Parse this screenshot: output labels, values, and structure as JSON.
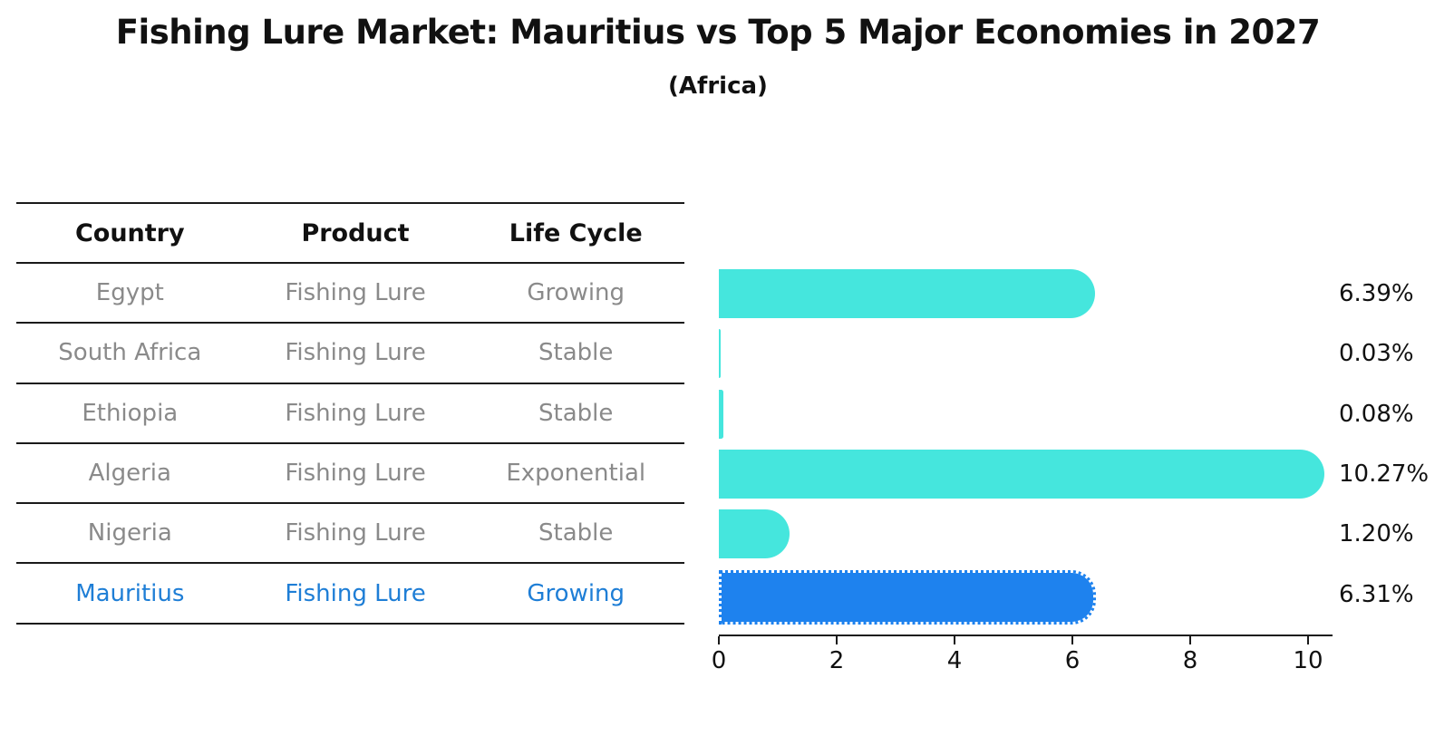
{
  "title": "Fishing Lure Market: Mauritius vs Top 5 Major Economies in 2027",
  "subtitle": "(Africa)",
  "table": {
    "headers": [
      "Country",
      "Product",
      "Life Cycle"
    ],
    "rows": [
      {
        "country": "Egypt",
        "product": "Fishing Lure",
        "life_cycle": "Growing",
        "highlight": false
      },
      {
        "country": "South Africa",
        "product": "Fishing Lure",
        "life_cycle": "Stable",
        "highlight": false
      },
      {
        "country": "Ethiopia",
        "product": "Fishing Lure",
        "life_cycle": "Stable",
        "highlight": false
      },
      {
        "country": "Algeria",
        "product": "Fishing Lure",
        "life_cycle": "Exponential",
        "highlight": false
      },
      {
        "country": "Nigeria",
        "product": "Fishing Lure",
        "life_cycle": "Stable",
        "highlight": false
      },
      {
        "country": "Mauritius",
        "product": "Fishing Lure",
        "life_cycle": "Growing",
        "highlight": true
      }
    ]
  },
  "chart_data": {
    "type": "bar",
    "orientation": "horizontal",
    "categories": [
      "Egypt",
      "South Africa",
      "Ethiopia",
      "Algeria",
      "Nigeria",
      "Mauritius"
    ],
    "values": [
      6.39,
      0.03,
      0.08,
      10.27,
      1.2,
      6.31
    ],
    "value_labels": [
      "6.39%",
      "0.03%",
      "0.08%",
      "10.27%",
      "1.20%",
      "6.31%"
    ],
    "highlight_index": 5,
    "xlabel": "",
    "ylabel": "",
    "xticks": [
      0,
      2,
      4,
      6,
      8,
      10
    ],
    "xlim": [
      0,
      10.4
    ],
    "grid": false,
    "legend": "none",
    "colors": {
      "bar": "#45e6dd",
      "highlight_bar": "#1e82ee",
      "highlight_text": "#1e7ed6",
      "row_text": "#8a8a8a",
      "header_text": "#111111",
      "axis_text": "#111111"
    }
  }
}
